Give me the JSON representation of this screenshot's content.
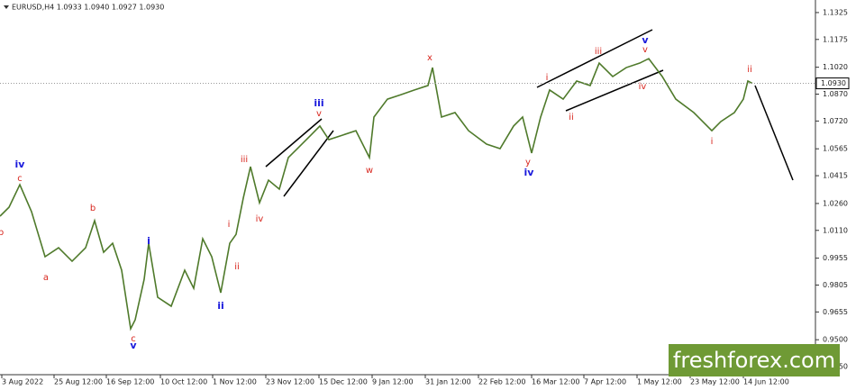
{
  "chart_data": {
    "type": "line",
    "title": "EURUSD,H4  1.0933 1.0940 1.0927 1.0930",
    "x": [
      0,
      10,
      22,
      35,
      50,
      65,
      80,
      95,
      105,
      115,
      125,
      135,
      145,
      150,
      160,
      165,
      175,
      190,
      205,
      215,
      225,
      235,
      245,
      255,
      262,
      270,
      278,
      288,
      298,
      310,
      320,
      330,
      345,
      355,
      365,
      380,
      395,
      410,
      415,
      430,
      445,
      460,
      475,
      480,
      490,
      505,
      520,
      540,
      555,
      570,
      580,
      590,
      600,
      610,
      625,
      640,
      655,
      665,
      680,
      695,
      710,
      720,
      735,
      750,
      770,
      790,
      800,
      815,
      825,
      830,
      835
    ],
    "series": [
      {
        "name": "EURUSD",
        "color": "#4f7a2b",
        "values": [
          1.0189,
          1.0239,
          1.0365,
          1.0214,
          0.9963,
          1.0013,
          0.9938,
          1.0013,
          1.0164,
          0.9988,
          1.0038,
          0.9888,
          0.9561,
          0.9611,
          0.9837,
          1.0038,
          0.9737,
          0.9687,
          0.9888,
          0.9787,
          1.0063,
          0.9963,
          0.9762,
          1.0038,
          1.0088,
          1.029,
          1.0465,
          1.0264,
          1.039,
          1.034,
          1.0516,
          1.0566,
          1.0641,
          1.0692,
          1.0616,
          1.0641,
          1.0666,
          1.0516,
          1.0742,
          1.0842,
          1.0867,
          1.0893,
          1.0918,
          1.1018,
          1.0742,
          1.0767,
          1.0666,
          1.0591,
          1.0566,
          1.0692,
          1.0742,
          1.0541,
          1.0742,
          1.0893,
          1.0842,
          1.0943,
          1.0918,
          1.1043,
          1.0968,
          1.1018,
          1.1043,
          1.1068,
          1.0968,
          1.0842,
          1.0767,
          1.0666,
          1.0717,
          1.0767,
          1.0842,
          1.0943,
          1.093
        ]
      }
    ],
    "xlim": [
      0,
      905
    ],
    "xticks": [
      {
        "value": 2,
        "label": "3 Aug 2022"
      },
      {
        "value": 60,
        "label": "25 Aug 12:00"
      },
      {
        "value": 118,
        "label": "16 Sep 12:00"
      },
      {
        "value": 178,
        "label": "10 Oct 12:00"
      },
      {
        "value": 236,
        "label": "1 Nov 12:00"
      },
      {
        "value": 295,
        "label": "23 Nov 12:00"
      },
      {
        "value": 354,
        "label": "15 Dec 12:00"
      },
      {
        "value": 413,
        "label": "9 Jan 12:00"
      },
      {
        "value": 472,
        "label": "31 Jan 12:00"
      },
      {
        "value": 531,
        "label": "22 Feb 12:00"
      },
      {
        "value": 590,
        "label": "16 Mar 12:00"
      },
      {
        "value": 648,
        "label": "7 Apr 12:00"
      },
      {
        "value": 707,
        "label": "1 May 12:00"
      },
      {
        "value": 766,
        "label": "23 May 12:00"
      },
      {
        "value": 825,
        "label": "14 Jun 12:00"
      }
    ],
    "ylim": [
      0.9305,
      1.1395
    ],
    "yticks": [
      1.1325,
      1.1175,
      {
        "value": 1.102,
        "label": "1.1020"
      },
      {
        "value": 1.087,
        "label": "1.0870"
      },
      {
        "value": 1.072,
        "label": "1.0720"
      },
      1.0565,
      1.0415,
      {
        "value": 1.026,
        "label": "1.0260"
      },
      {
        "value": 1.011,
        "label": "1.0110"
      },
      0.9955,
      0.9805,
      0.9655,
      {
        "value": 0.95,
        "label": "0.9500"
      },
      {
        "value": 0.935,
        "label": "0.9350"
      }
    ],
    "last_price": {
      "value": 1.093,
      "label": "1.0930"
    },
    "grid": false,
    "annotations": [
      {
        "text": "iv",
        "color": "#1a1adc"
      },
      {
        "text": "c",
        "color": "#d8271f"
      },
      {
        "text": "b",
        "color": "#d8271f"
      },
      {
        "text": "a",
        "color": "#d8271f"
      },
      {
        "text": "b",
        "color": "#d8271f"
      },
      {
        "text": "c",
        "color": "#d8271f"
      },
      {
        "text": "v",
        "color": "#1a1adc"
      },
      {
        "text": "i",
        "color": "#1a1adc"
      },
      {
        "text": "ii",
        "color": "#1a1adc"
      },
      {
        "text": "i",
        "color": "#d8271f"
      },
      {
        "text": "ii",
        "color": "#d8271f"
      },
      {
        "text": "iii",
        "color": "#d8271f"
      },
      {
        "text": "iv",
        "color": "#d8271f"
      },
      {
        "text": "iii",
        "color": "#1a1adc"
      },
      {
        "text": "v",
        "color": "#d8271f"
      },
      {
        "text": "w",
        "color": "#d8271f"
      },
      {
        "text": "x",
        "color": "#d8271f"
      },
      {
        "text": "y",
        "color": "#d8271f"
      },
      {
        "text": "iv",
        "color": "#1a1adc"
      },
      {
        "text": "i",
        "color": "#d8271f"
      },
      {
        "text": "ii",
        "color": "#d8271f"
      },
      {
        "text": "iii",
        "color": "#d8271f"
      },
      {
        "text": "iv",
        "color": "#d8271f"
      },
      {
        "text": "v",
        "color": "#1a1adc"
      },
      {
        "text": "v",
        "color": "#d8271f"
      },
      {
        "text": "i",
        "color": "#d8271f"
      },
      {
        "text": "ii",
        "color": "#d8271f"
      }
    ],
    "watermark": "freshforex.com"
  }
}
